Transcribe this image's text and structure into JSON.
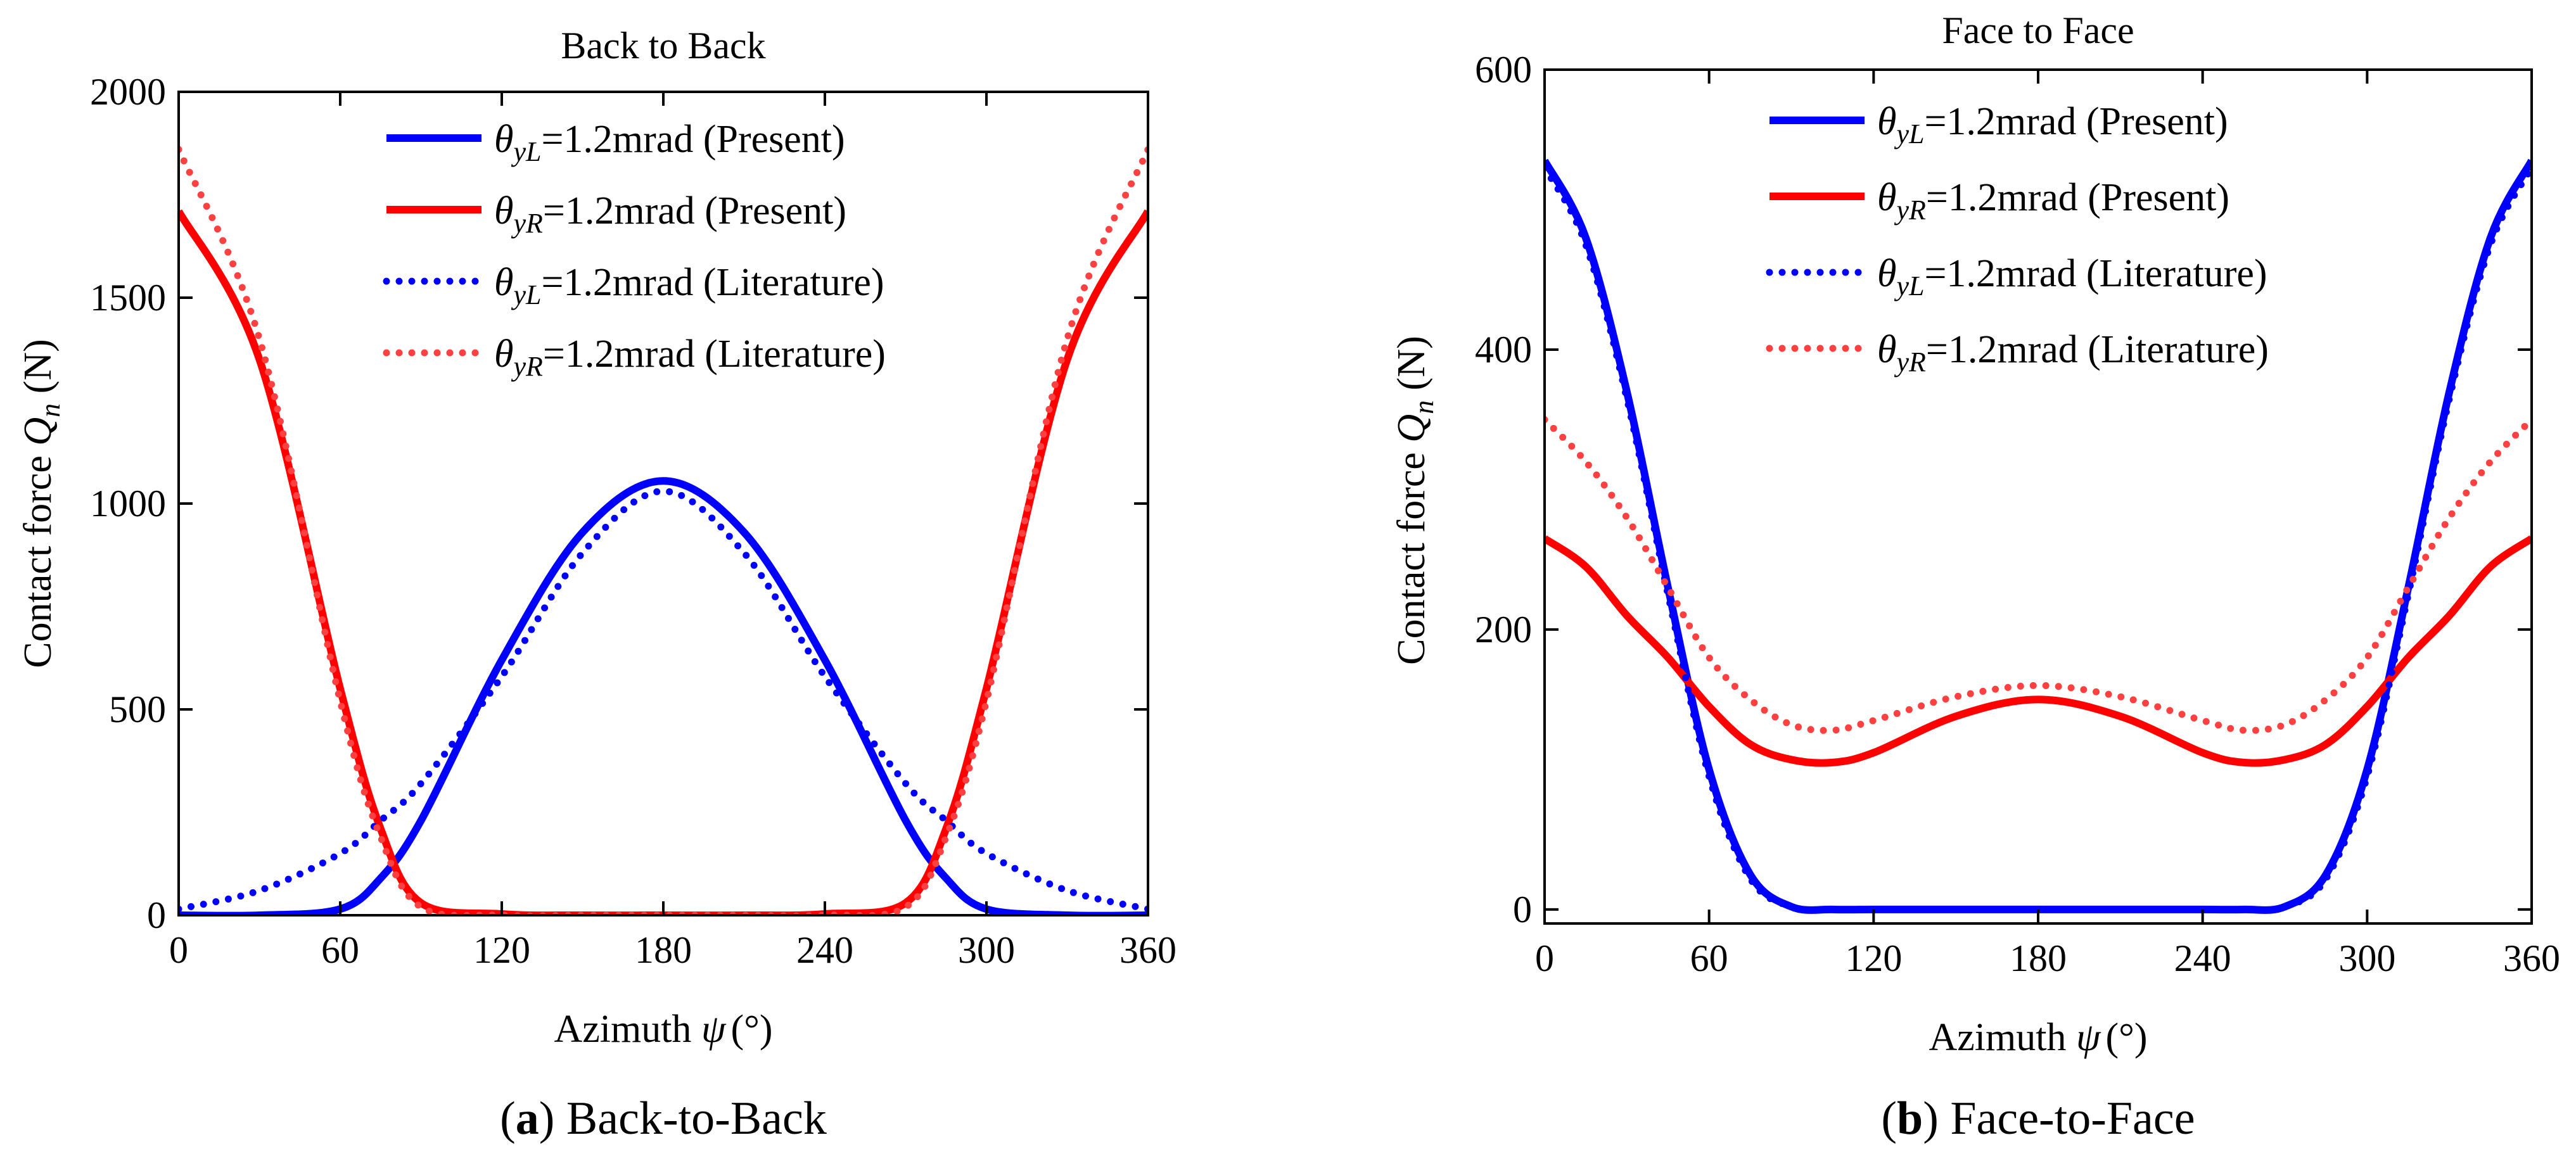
{
  "chart_data": [
    {
      "type": "line",
      "title": "Back to Back",
      "caption": {
        "letter": "a",
        "text": "Back-to-Back"
      },
      "xlabel": {
        "text": "Azimuth ",
        "symbol": "ψ",
        "unit": "(°)"
      },
      "ylabel": {
        "text": "Contact force ",
        "symbol": "Q",
        "sub": "n",
        "unit": " (N)"
      },
      "xlim": [
        0,
        360
      ],
      "ylim": [
        0,
        2000
      ],
      "xticks": [
        0,
        60,
        120,
        180,
        240,
        300,
        360
      ],
      "yticks": [
        0,
        500,
        1000,
        1500,
        2000
      ],
      "grid": false,
      "legend_position": "top-center",
      "x": [
        0,
        30,
        60,
        75,
        90,
        120,
        150,
        180,
        210,
        240,
        270,
        285,
        300,
        330,
        360
      ],
      "series": [
        {
          "name": "θyL=1.2mrad (Present)",
          "legend": {
            "symbol": "θ",
            "sub": "yL",
            "text": "=1.2mrad (Present)"
          },
          "color": "#0000ff",
          "style": "solid",
          "values": [
            0,
            0,
            15,
            90,
            230,
            620,
            930,
            1055,
            930,
            620,
            230,
            90,
            15,
            0,
            0
          ]
        },
        {
          "name": "θyR=1.2mrad (Present)",
          "legend": {
            "symbol": "θ",
            "sub": "yR",
            "text": "=1.2mrad (Present)"
          },
          "color": "#ff0000",
          "style": "solid",
          "values": [
            1710,
            1350,
            550,
            210,
            30,
            3,
            0,
            0,
            0,
            3,
            30,
            210,
            550,
            1350,
            1710
          ]
        },
        {
          "name": "θyL=1.2mrad (Literature)",
          "legend": {
            "symbol": "θ",
            "sub": "yL",
            "text": "=1.2mrad (Literature)"
          },
          "color": "#0000ff",
          "style": "dotted",
          "values": [
            15,
            60,
            150,
            230,
            320,
            580,
            880,
            1030,
            880,
            580,
            320,
            230,
            150,
            60,
            15
          ]
        },
        {
          "name": "θyR=1.2mrad (Literature)",
          "legend": {
            "symbol": "θ",
            "sub": "yR",
            "text": "=1.2mrad (Literature)"
          },
          "color": "#ff4040",
          "style": "dotted",
          "values": [
            1860,
            1400,
            520,
            190,
            20,
            0,
            0,
            0,
            0,
            0,
            20,
            190,
            520,
            1400,
            1860
          ]
        }
      ]
    },
    {
      "type": "line",
      "title": "Face to Face",
      "caption": {
        "letter": "b",
        "text": "Face-to-Face"
      },
      "xlabel": {
        "text": "Azimuth ",
        "symbol": "ψ",
        "unit": "(°)"
      },
      "ylabel": {
        "text": "Contact force ",
        "symbol": "Q",
        "sub": "n",
        "unit": " (N)"
      },
      "xlim": [
        0,
        360
      ],
      "ylim": [
        -10,
        600
      ],
      "xticks": [
        0,
        60,
        120,
        180,
        240,
        300,
        360
      ],
      "yticks": [
        0,
        200,
        400,
        600
      ],
      "grid": false,
      "legend_position": "top-center",
      "x": [
        0,
        15,
        30,
        45,
        60,
        75,
        90,
        105,
        120,
        150,
        180,
        210,
        240,
        255,
        270,
        285,
        300,
        315,
        330,
        345,
        360
      ],
      "series": [
        {
          "name": "θyL=1.2mrad (Present)",
          "legend": {
            "symbol": "θ",
            "sub": "yL",
            "text": "=1.2mrad (Present)"
          },
          "color": "#0000ff",
          "style": "solid",
          "values": [
            535,
            480,
            370,
            230,
            100,
            25,
            2,
            0,
            0,
            0,
            0,
            0,
            0,
            0,
            2,
            25,
            100,
            230,
            370,
            480,
            535
          ]
        },
        {
          "name": "θyR=1.2mrad (Present)",
          "legend": {
            "symbol": "θ",
            "sub": "yR",
            "text": "=1.2mrad (Present)"
          },
          "color": "#ff0000",
          "style": "solid",
          "values": [
            265,
            245,
            210,
            180,
            145,
            118,
            107,
            105,
            112,
            138,
            150,
            138,
            112,
            105,
            107,
            118,
            145,
            180,
            210,
            245,
            265
          ]
        },
        {
          "name": "θyL=1.2mrad (Literature)",
          "legend": {
            "symbol": "θ",
            "sub": "yL",
            "text": "=1.2mrad (Literature)"
          },
          "color": "#0000ff",
          "style": "dotted",
          "values": [
            530,
            475,
            365,
            225,
            95,
            22,
            2,
            0,
            0,
            0,
            0,
            0,
            0,
            0,
            2,
            22,
            95,
            225,
            365,
            475,
            530
          ]
        },
        {
          "name": "θyR=1.2mrad (Literature)",
          "legend": {
            "symbol": "θ",
            "sub": "yR",
            "text": "=1.2mrad (Literature)"
          },
          "color": "#ff4040",
          "style": "dotted",
          "values": [
            350,
            320,
            280,
            230,
            180,
            150,
            132,
            128,
            135,
            152,
            160,
            152,
            135,
            128,
            132,
            150,
            180,
            230,
            280,
            320,
            350
          ]
        }
      ]
    }
  ]
}
